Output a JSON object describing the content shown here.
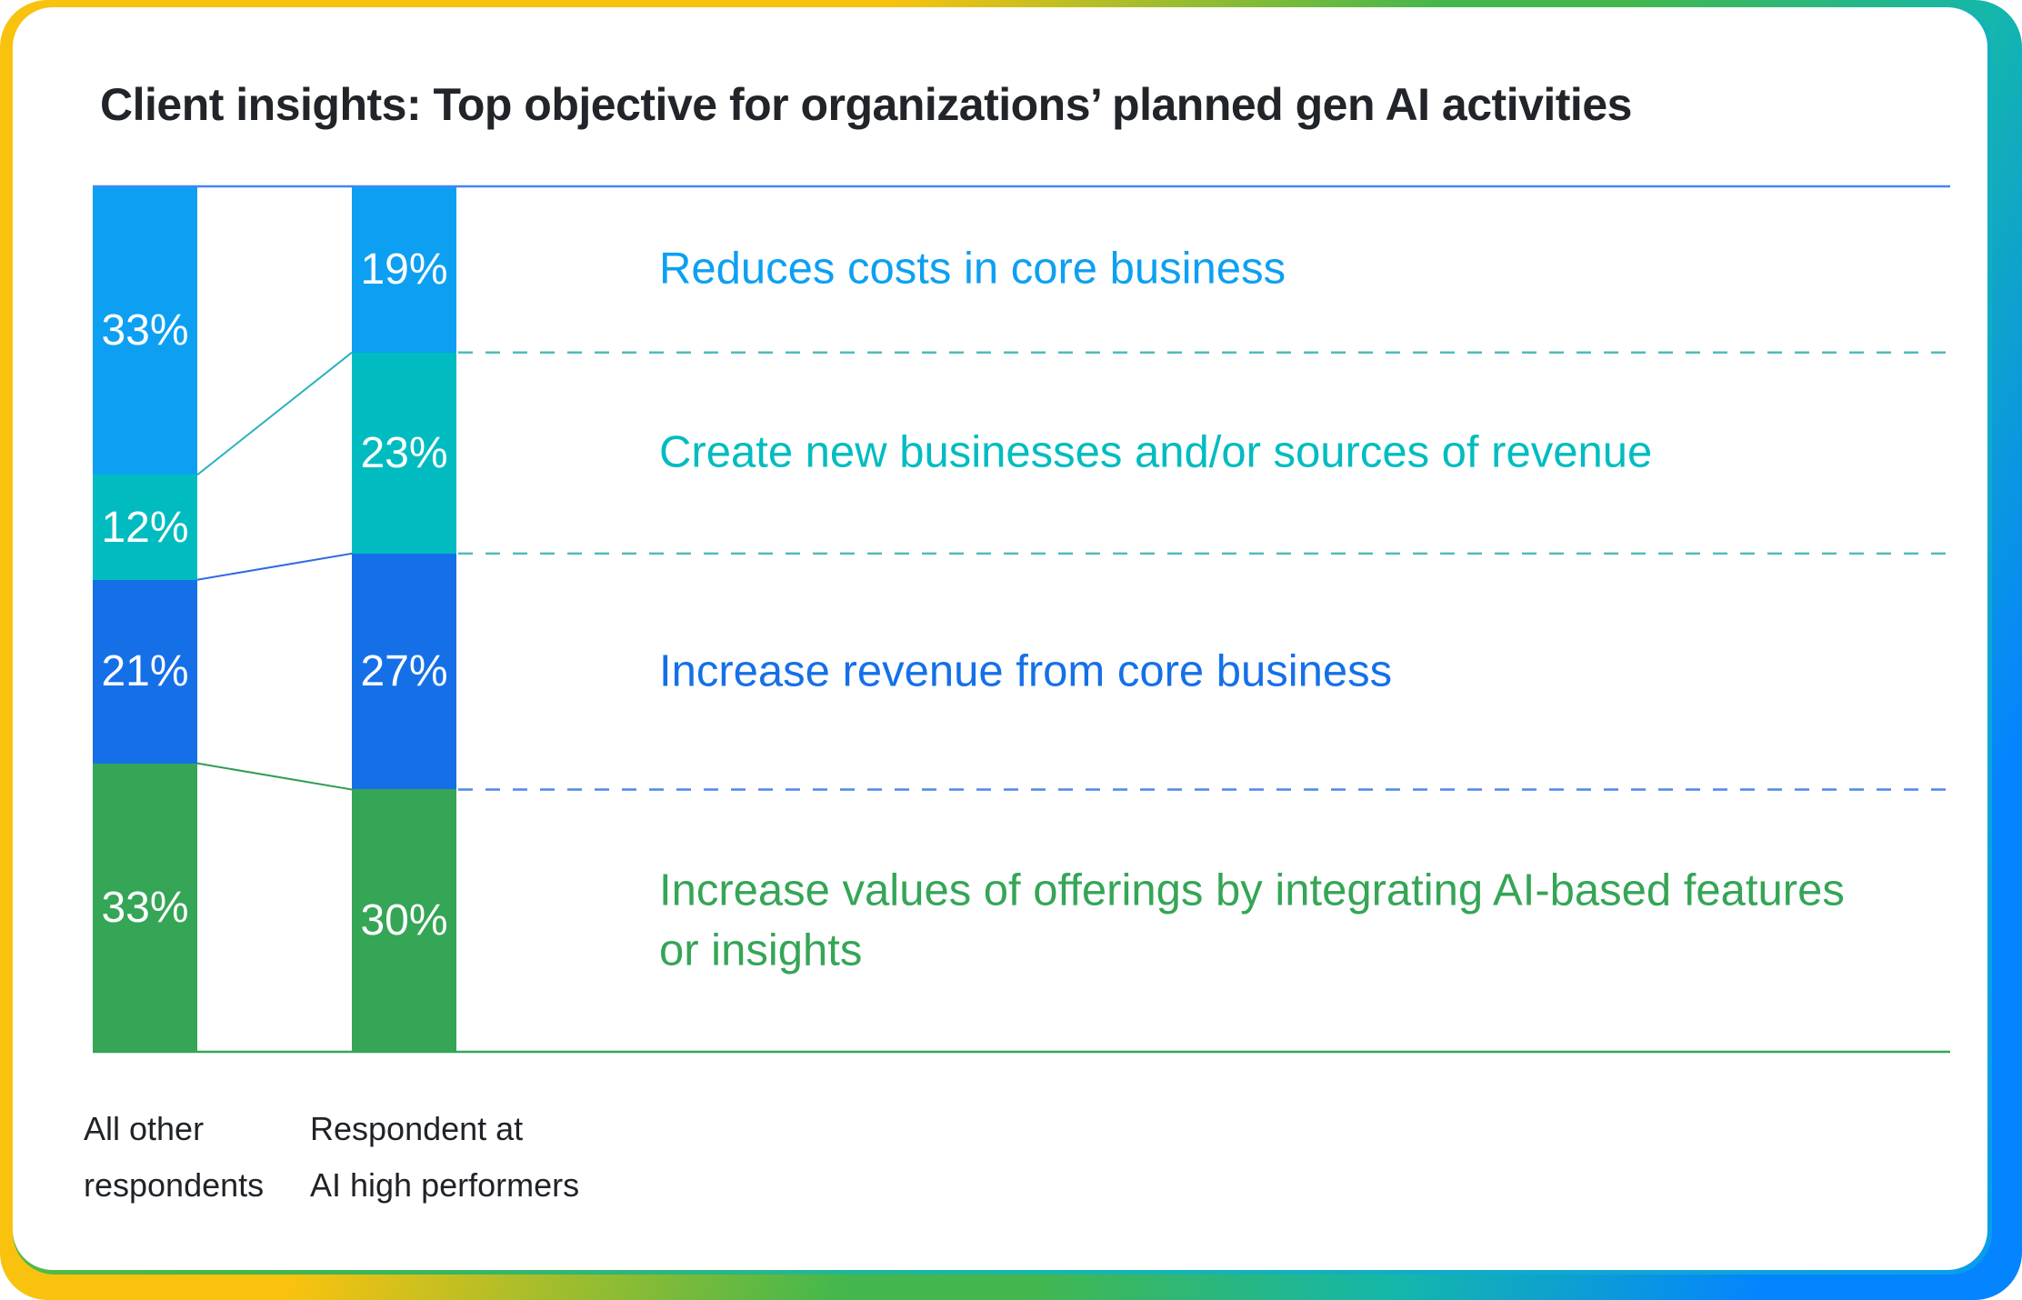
{
  "title": "Client insights: Top objective for organizations’ planned gen AI activities",
  "frame": {
    "outer_gradient": [
      "#F8C20F",
      "#43B74D",
      "#14B7AB",
      "#0584FF"
    ],
    "inner_edge_gradient": [
      "#8CC63F",
      "#45B649",
      "#16B7AD",
      "#0A9CEC"
    ],
    "card_background": "#FFFFFF"
  },
  "chart_data": {
    "type": "bar",
    "subtype": "paired-stacked-percent-columns",
    "title": "Client insights: Top objective for organizations’ planned gen AI activities",
    "total": 99,
    "value_format": "percent",
    "legend_position": "right-of-bars",
    "grid": false,
    "columns": [
      {
        "label": "All other respondents",
        "label_lines": [
          "All other",
          "respondents"
        ]
      },
      {
        "label": "Respondent at AI high performers",
        "label_lines": [
          "Respondent at",
          "AI high performers"
        ]
      }
    ],
    "categories": [
      {
        "label": "Reduces costs in core business",
        "color": "#0DA0F2",
        "values": [
          33,
          19
        ]
      },
      {
        "label": "Create new businesses and/or sources of revenue",
        "color": "#00BCC0",
        "values": [
          12,
          23
        ]
      },
      {
        "label": "Increase revenue from core business",
        "color": "#1570E8",
        "values": [
          21,
          27
        ]
      },
      {
        "label": "Increase values of offerings by integrating AI-based features or insights",
        "color": "#35A556",
        "values": [
          33,
          30
        ]
      }
    ],
    "style": {
      "value_label_color": "#FFFFFF",
      "top_axis_line_color": "#4285F4",
      "baseline_color": "#35A556",
      "divider_colors": [
        "#52BBB8",
        "#52BBB8",
        "#4F86E8"
      ],
      "connector_colors": [
        "#29B3C0",
        "#2E6BE0",
        "#2F9E53"
      ],
      "title_color": "#212529",
      "column_label_color": "#1F2328"
    }
  }
}
